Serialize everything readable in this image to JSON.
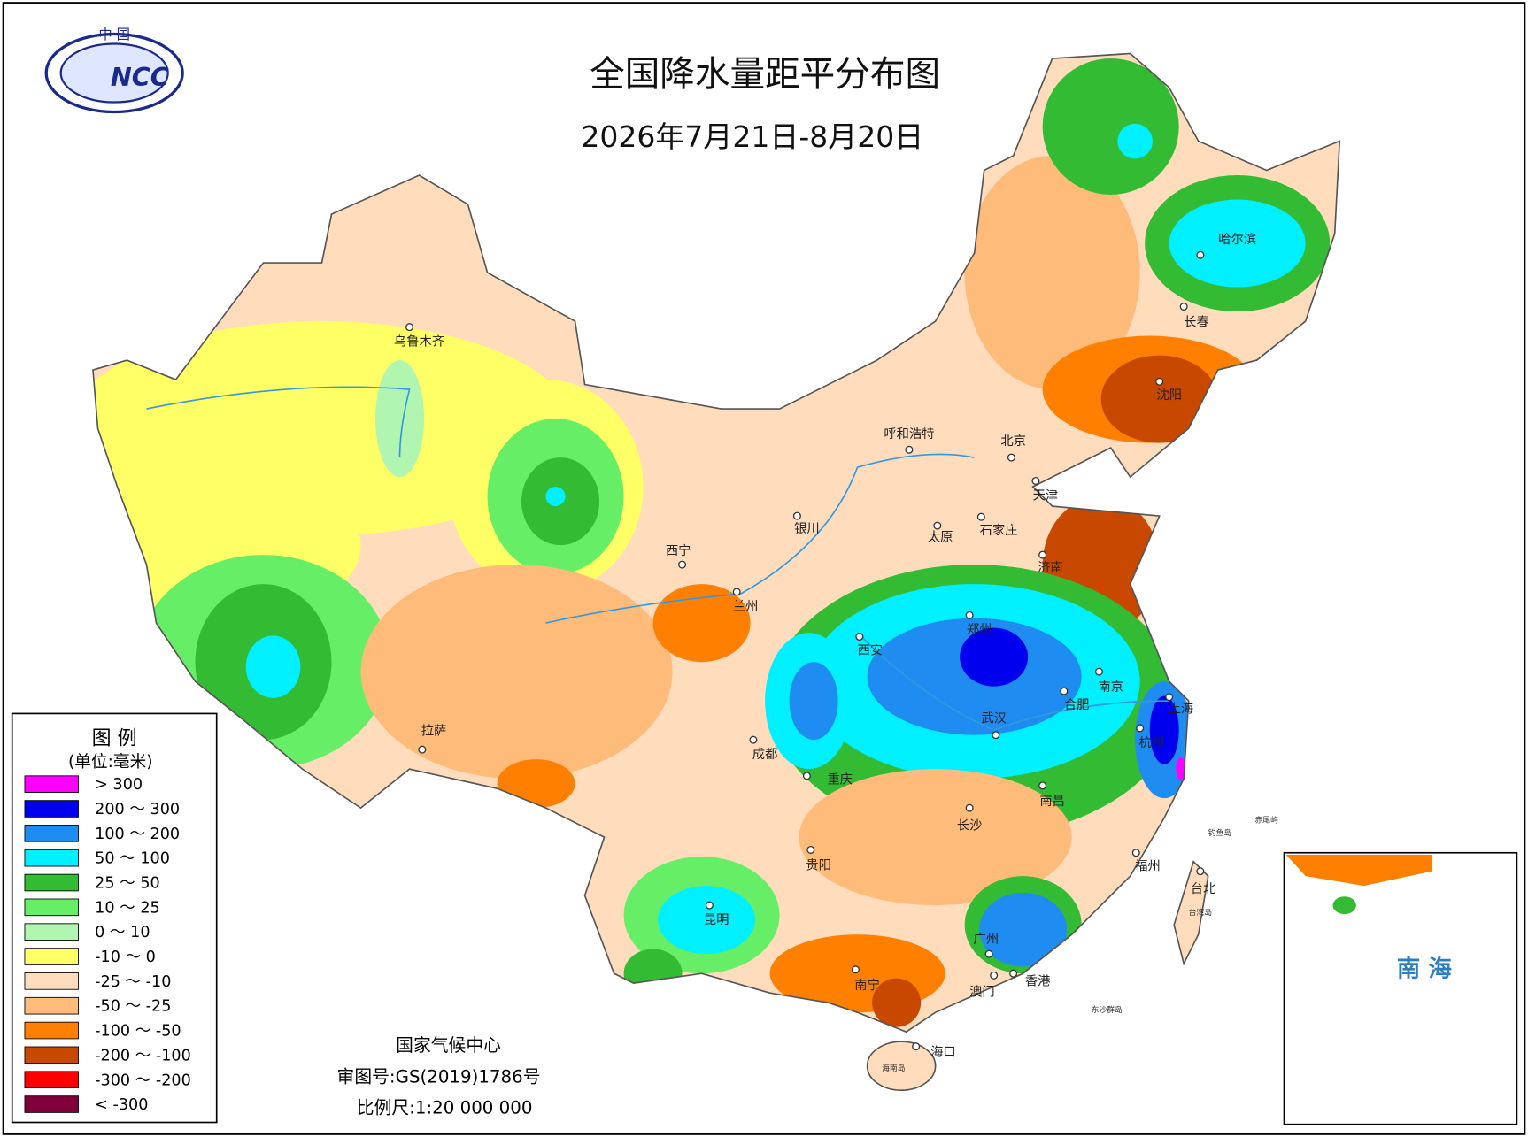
{
  "title": "全国降水量距平分布图",
  "subtitle": "2026年7月21日-8月20日",
  "logo": {
    "top": "中 国",
    "text": "NCC"
  },
  "legend": {
    "title": "图 例",
    "unit": "(单位:毫米)",
    "items": [
      {
        "label": "> 300",
        "color": "#ff00ff"
      },
      {
        "label": "200 ～ 300",
        "color": "#0000ee"
      },
      {
        "label": "100 ～ 200",
        "color": "#1e8cf0"
      },
      {
        "label": "50 ～ 100",
        "color": "#00f0ff"
      },
      {
        "label": "25 ～ 50",
        "color": "#33bb33"
      },
      {
        "label": "10 ～ 25",
        "color": "#66ee66"
      },
      {
        "label": "0 ～ 10",
        "color": "#b0f5b0"
      },
      {
        "label": "-10 ～ 0",
        "color": "#ffff66"
      },
      {
        "label": "-25 ～ -10",
        "color": "#ffdcbc"
      },
      {
        "label": "-50 ～ -25",
        "color": "#ffbb7a"
      },
      {
        "label": "-100 ～ -50",
        "color": "#ff8000"
      },
      {
        "label": "-200 ～ -100",
        "color": "#c84800"
      },
      {
        "label": "-300 ～ -200",
        "color": "#ff0000"
      },
      {
        "label": "< -300",
        "color": "#80003c"
      }
    ]
  },
  "cities": [
    "乌鲁木齐",
    "拉萨",
    "西宁",
    "兰州",
    "银川",
    "呼和浩特",
    "北京",
    "天津",
    "石家庄",
    "太原",
    "济南",
    "郑州",
    "西安",
    "南京",
    "合肥",
    "上海",
    "杭州",
    "武汉",
    "成都",
    "重庆",
    "南昌",
    "长沙",
    "贵阳",
    "福州",
    "台北",
    "昆明",
    "广州",
    "南宁",
    "澳门",
    "香港",
    "海口",
    "哈尔滨",
    "长春",
    "沈阳"
  ],
  "sea_labels": [
    "台湾岛",
    "海南岛",
    "东沙群岛",
    "钓鱼岛",
    "赤尾屿"
  ],
  "inset": {
    "label": "南 海"
  },
  "footer": [
    "国家气候中心",
    "审图号:GS(2019)1786号",
    "比例尺:1:20 000 000"
  ]
}
